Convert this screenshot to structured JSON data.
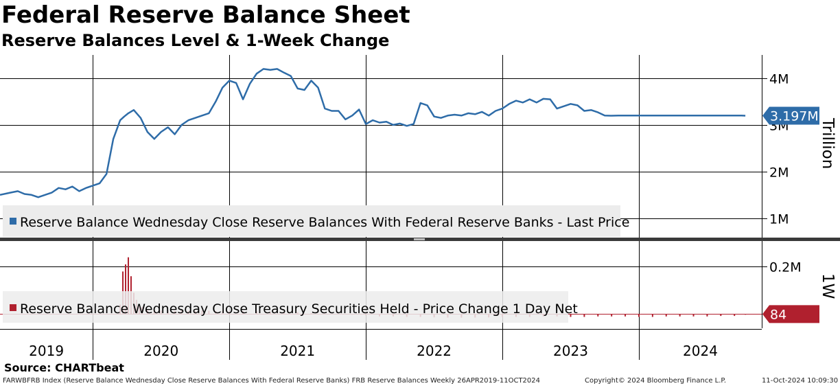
{
  "title": "Federal Reserve Balance Sheet",
  "subtitle": "Reserve Balances Level & 1-Week Change",
  "source": "Source: CHARTbeat",
  "footer": {
    "description": "FARWBFRB Index (Reserve Balance Wednesday Close Reserve Balances With Federal Reserve Banks) FRB Reserve Balances  Weekly 26APR2019-11OCT2024",
    "copyright": "Copyright© 2024 Bloomberg Finance L.P.",
    "timestamp": "11-Oct-2024 10:09:30"
  },
  "colors": {
    "level": "#2e6ca8",
    "change": "#b0202e",
    "grid": "#000000",
    "legend_bg": "#ececec"
  },
  "chart_data": [
    {
      "type": "line",
      "name": "level",
      "legend": "Reserve Balance Wednesday Close Reserve Balances With Federal Reserve Banks - Last Price",
      "unit_label": "Trillion",
      "last_value_label": "3.197M",
      "yticks": [
        1,
        2,
        3,
        4
      ],
      "ytick_labels": [
        "1M",
        "2M",
        "3M",
        "4M"
      ],
      "ylim": [
        0.6,
        4.5
      ],
      "x": [
        2019.32,
        2019.4,
        2019.45,
        2019.5,
        2019.55,
        2019.6,
        2019.65,
        2019.7,
        2019.75,
        2019.8,
        2019.85,
        2019.9,
        2019.95,
        2020.0,
        2020.05,
        2020.1,
        2020.15,
        2020.2,
        2020.23,
        2020.26,
        2020.3,
        2020.35,
        2020.4,
        2020.45,
        2020.5,
        2020.55,
        2020.6,
        2020.65,
        2020.7,
        2020.75,
        2020.8,
        2020.85,
        2020.9,
        2020.95,
        2021.0,
        2021.05,
        2021.1,
        2021.15,
        2021.2,
        2021.25,
        2021.3,
        2021.35,
        2021.4,
        2021.45,
        2021.5,
        2021.55,
        2021.6,
        2021.65,
        2021.7,
        2021.75,
        2021.8,
        2021.85,
        2021.9,
        2021.95,
        2022.0,
        2022.05,
        2022.1,
        2022.15,
        2022.2,
        2022.25,
        2022.3,
        2022.35,
        2022.4,
        2022.45,
        2022.5,
        2022.55,
        2022.6,
        2022.65,
        2022.7,
        2022.75,
        2022.8,
        2022.85,
        2022.9,
        2022.95,
        2023.0,
        2023.05,
        2023.1,
        2023.15,
        2023.2,
        2023.25,
        2023.3,
        2023.35,
        2023.4,
        2023.45,
        2023.5,
        2023.55,
        2023.6,
        2023.65,
        2023.7,
        2023.75,
        2023.8,
        2023.85,
        2023.9,
        2023.95,
        2024.0,
        2024.05,
        2024.1,
        2024.15,
        2024.2,
        2024.25,
        2024.3,
        2024.35,
        2024.4,
        2024.45,
        2024.5,
        2024.55,
        2024.6,
        2024.65,
        2024.7,
        2024.75,
        2024.78
      ],
      "values": [
        1.5,
        1.55,
        1.58,
        1.52,
        1.5,
        1.45,
        1.5,
        1.55,
        1.65,
        1.62,
        1.68,
        1.58,
        1.65,
        1.7,
        1.75,
        1.95,
        2.7,
        3.1,
        3.18,
        3.25,
        3.32,
        3.15,
        2.85,
        2.7,
        2.85,
        2.95,
        2.8,
        3.0,
        3.1,
        3.15,
        3.2,
        3.25,
        3.5,
        3.8,
        3.95,
        3.9,
        3.55,
        3.88,
        4.1,
        4.2,
        4.18,
        4.2,
        4.12,
        4.05,
        3.78,
        3.75,
        3.95,
        3.8,
        3.35,
        3.3,
        3.3,
        3.12,
        3.2,
        3.33,
        3.02,
        3.1,
        3.05,
        3.07,
        3.0,
        3.03,
        2.98,
        3.02,
        3.47,
        3.42,
        3.18,
        3.15,
        3.2,
        3.22,
        3.2,
        3.25,
        3.23,
        3.28,
        3.2,
        3.3,
        3.35,
        3.45,
        3.52,
        3.48,
        3.55,
        3.48,
        3.56,
        3.55,
        3.35,
        3.4,
        3.45,
        3.42,
        3.3,
        3.32,
        3.27,
        3.2,
        3.197,
        3.2,
        3.2,
        3.2,
        3.2,
        3.2,
        3.2,
        3.2,
        3.2,
        3.2,
        3.2,
        3.2,
        3.2,
        3.2,
        3.2,
        3.2,
        3.2,
        3.2,
        3.2,
        3.2,
        3.197
      ]
    },
    {
      "type": "bar",
      "name": "change",
      "legend": "Reserve Balance Wednesday Close Treasury Securities Held - Price Change 1 Day Net",
      "unit_label": "1W",
      "last_value_label": "84",
      "yticks": [
        0.2
      ],
      "ytick_labels": [
        "0.2M"
      ],
      "ylim": [
        -0.06,
        0.3
      ],
      "x": [
        2020.2,
        2020.22,
        2020.24,
        2020.26,
        2020.28,
        2020.3,
        2020.32,
        2020.34,
        2020.36,
        2020.4,
        2020.45,
        2020.5,
        2020.55,
        2020.6,
        2020.65,
        2020.7,
        2020.75,
        2020.8,
        2020.85,
        2020.9,
        2020.95,
        2021.0,
        2021.1,
        2021.2,
        2021.3,
        2021.4,
        2021.5,
        2021.6,
        2021.7,
        2021.8,
        2021.9,
        2022.0,
        2022.1,
        2022.2,
        2022.3,
        2022.4,
        2022.5,
        2022.6,
        2022.7,
        2022.8,
        2022.9,
        2023.0,
        2023.1,
        2023.2,
        2023.3,
        2023.4,
        2023.5,
        2023.6,
        2023.7,
        2023.8,
        2023.9,
        2024.0,
        2024.1,
        2024.2,
        2024.3,
        2024.4,
        2024.5,
        2024.6,
        2024.7,
        2024.78
      ],
      "values": [
        0.04,
        0.18,
        0.21,
        0.24,
        0.16,
        0.09,
        0.06,
        0.04,
        0.03,
        0.02,
        0.018,
        0.015,
        0.015,
        0.014,
        0.015,
        0.014,
        0.013,
        0.015,
        0.014,
        0.013,
        0.012,
        0.012,
        0.012,
        0.012,
        0.01,
        0.01,
        0.008,
        0.004,
        0.002,
        0.001,
        0.0,
        -0.005,
        -0.01,
        -0.01,
        -0.012,
        -0.012,
        -0.014,
        -0.015,
        -0.015,
        -0.015,
        -0.014,
        -0.012,
        -0.012,
        -0.012,
        -0.01,
        -0.01,
        -0.012,
        -0.012,
        -0.01,
        -0.01,
        -0.01,
        -0.012,
        -0.012,
        -0.01,
        -0.01,
        -0.01,
        -0.01,
        -0.008,
        -0.008,
        0.0001
      ]
    }
  ],
  "x_axis": {
    "years": [
      "2019",
      "2020",
      "2021",
      "2022",
      "2023",
      "2024"
    ],
    "year_bounds": [
      2019.32,
      2020.0,
      2021.0,
      2022.0,
      2023.0,
      2024.0,
      2024.9
    ]
  }
}
